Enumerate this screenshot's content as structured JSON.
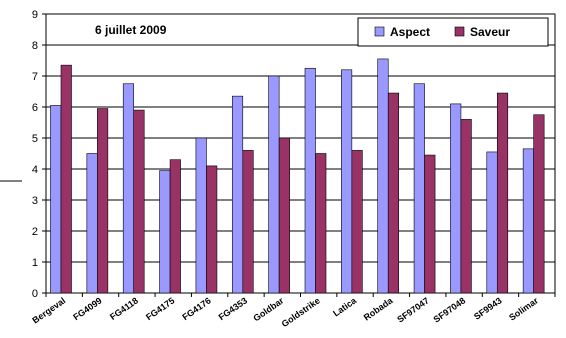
{
  "chart_data": {
    "type": "bar",
    "title": "6 juillet 2009",
    "xlabel": "",
    "ylabel": "",
    "ylim": [
      0,
      9
    ],
    "yticks": [
      0,
      1,
      2,
      3,
      4,
      5,
      6,
      7,
      8,
      9
    ],
    "grid": true,
    "legend_position": "top-right",
    "categories": [
      "Bergeval",
      "FG4099",
      "FG4118",
      "FG4175",
      "FG4176",
      "FG4353",
      "Goldbar",
      "Goldstrike",
      "Latica",
      "Robada",
      "SF97047",
      "SF97048",
      "SF9943",
      "Solimar"
    ],
    "series": [
      {
        "name": "Aspect",
        "color": "#9999ff",
        "values": [
          6.05,
          4.5,
          6.75,
          3.95,
          5.0,
          6.35,
          7.0,
          7.25,
          7.2,
          7.55,
          6.75,
          6.1,
          4.55,
          4.65
        ]
      },
      {
        "name": "Saveur",
        "color": "#993366",
        "values": [
          7.35,
          5.95,
          5.9,
          4.3,
          4.1,
          4.6,
          5.0,
          4.5,
          4.6,
          6.45,
          4.45,
          5.6,
          6.45,
          5.75
        ]
      }
    ]
  }
}
